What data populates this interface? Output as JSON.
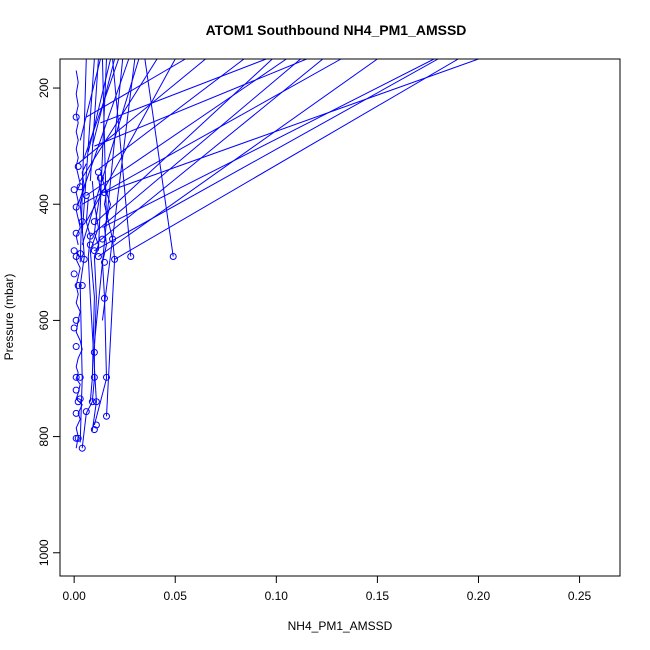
{
  "chart_data": {
    "type": "line",
    "title": "ATOM1 Southbound NH4_PM1_AMSSD",
    "xlabel": "NH4_PM1_AMSSD",
    "ylabel": "Pressure (mbar)",
    "xlim": [
      -0.007,
      0.27
    ],
    "ylim": [
      1040,
      150
    ],
    "y_reversed": true,
    "grid": false,
    "x_ticks": [
      "0.00",
      "0.05",
      "0.10",
      "0.15",
      "0.20",
      "0.25"
    ],
    "y_ticks": [
      "200",
      "400",
      "600",
      "800",
      "1000"
    ],
    "colors": {
      "series": "#0000ff",
      "axis": "#000000"
    },
    "series": [
      {
        "x": [
          0.001,
          0.002,
          0.001,
          0.003,
          0.002,
          0.004,
          0.001,
          0.002,
          0.003,
          0.001,
          0.002,
          0.001,
          0.002,
          0.004,
          0.003,
          0.001,
          0.002,
          0.003,
          0.001,
          0.002,
          0.001,
          0.002,
          0.003,
          0.001,
          0.002
        ],
        "y": [
          820,
          800,
          785,
          770,
          760,
          745,
          735,
          725,
          710,
          700,
          690,
          680,
          665,
          650,
          635,
          620,
          600,
          585,
          570,
          555,
          540,
          525,
          510,
          495,
          480
        ]
      },
      {
        "x": [
          0.002,
          0.001,
          0.003,
          0.002,
          0.001,
          0.002,
          0.001,
          0.003,
          0.002,
          0.001,
          0.002,
          0.001,
          0.002,
          0.001,
          0.002,
          0.001,
          0.002,
          0.001,
          0.002,
          0.001
        ],
        "y": [
          470,
          455,
          440,
          425,
          410,
          395,
          380,
          365,
          350,
          335,
          320,
          305,
          290,
          275,
          260,
          245,
          230,
          210,
          190,
          170
        ]
      },
      {
        "x": [
          0.004,
          0.006,
          0.009,
          0.01,
          0.01,
          0.011,
          0.01,
          0.012,
          0.01,
          0.011,
          0.013,
          0.012
        ],
        "y": [
          820,
          760,
          740,
          700,
          650,
          560,
          490,
          470,
          450,
          420,
          380,
          350
        ]
      },
      {
        "x": [
          0.01,
          0.016,
          0.015,
          0.014,
          0.016,
          0.015,
          0.018,
          0.015
        ],
        "y": [
          780,
          700,
          560,
          500,
          470,
          440,
          400,
          370
        ]
      },
      {
        "x": [
          0.016,
          0.02,
          0.019,
          0.017,
          0.015,
          0.016,
          0.013
        ],
        "y": [
          765,
          495,
          460,
          430,
          400,
          380,
          345
        ]
      },
      {
        "x": [
          0.003,
          0.004,
          0.003,
          0.005,
          0.004,
          0.003,
          0.005,
          0.004,
          0.006
        ],
        "y": [
          810,
          700,
          540,
          490,
          440,
          400,
          370,
          345,
          330
        ]
      },
      {
        "x": [
          0.009,
          0.011,
          0.008,
          0.007,
          0.008,
          0.006,
          0.007
        ],
        "y": [
          790,
          740,
          560,
          490,
          455,
          430,
          390
        ]
      },
      {
        "x": [
          0.008,
          0.009,
          0.01,
          0.008,
          0.012,
          0.01,
          0.009
        ],
        "y": [
          740,
          700,
          560,
          480,
          440,
          400,
          360
        ]
      }
    ],
    "rays": [
      {
        "x1": 0.049,
        "y1": 490,
        "x2": 0.035,
        "y2": 150
      },
      {
        "x1": 0.028,
        "y1": 490,
        "x2": 0.019,
        "y2": 150
      },
      {
        "x1": 0.02,
        "y1": 495,
        "x2": 0.19,
        "y2": 150
      },
      {
        "x1": 0.01,
        "y1": 480,
        "x2": 0.18,
        "y2": 150
      },
      {
        "x1": 0.012,
        "y1": 490,
        "x2": 0.15,
        "y2": 150
      },
      {
        "x1": 0.01,
        "y1": 470,
        "x2": 0.123,
        "y2": 150
      },
      {
        "x1": 0.008,
        "y1": 455,
        "x2": 0.112,
        "y2": 150
      },
      {
        "x1": 0.014,
        "y1": 440,
        "x2": 0.178,
        "y2": 150
      },
      {
        "x1": 0.011,
        "y1": 430,
        "x2": 0.098,
        "y2": 150
      },
      {
        "x1": 0.004,
        "y1": 400,
        "x2": 0.132,
        "y2": 150
      },
      {
        "x1": 0.006,
        "y1": 385,
        "x2": 0.105,
        "y2": 150
      },
      {
        "x1": 0.015,
        "y1": 380,
        "x2": 0.2,
        "y2": 150
      },
      {
        "x1": 0.012,
        "y1": 340,
        "x2": 0.084,
        "y2": 150
      },
      {
        "x1": 0.003,
        "y1": 360,
        "x2": 0.041,
        "y2": 150
      },
      {
        "x1": 0.006,
        "y1": 430,
        "x2": 0.05,
        "y2": 150
      },
      {
        "x1": 0.004,
        "y1": 470,
        "x2": 0.032,
        "y2": 150
      },
      {
        "x1": 0.002,
        "y1": 400,
        "x2": 0.027,
        "y2": 150
      },
      {
        "x1": 0.005,
        "y1": 320,
        "x2": 0.022,
        "y2": 150
      },
      {
        "x1": 0.007,
        "y1": 310,
        "x2": 0.018,
        "y2": 150
      },
      {
        "x1": 0.009,
        "y1": 300,
        "x2": 0.02,
        "y2": 150
      },
      {
        "x1": 0.003,
        "y1": 290,
        "x2": 0.013,
        "y2": 150
      },
      {
        "x1": 0.012,
        "y1": 480,
        "x2": 0.016,
        "y2": 150
      },
      {
        "x1": 0.016,
        "y1": 430,
        "x2": 0.014,
        "y2": 150
      },
      {
        "x1": 0.004,
        "y1": 450,
        "x2": 0.01,
        "y2": 150
      },
      {
        "x1": 0.01,
        "y1": 300,
        "x2": 0.115,
        "y2": 150
      },
      {
        "x1": 0.013,
        "y1": 260,
        "x2": 0.095,
        "y2": 150
      },
      {
        "x1": 0.002,
        "y1": 330,
        "x2": 0.065,
        "y2": 150
      },
      {
        "x1": 0.006,
        "y1": 250,
        "x2": 0.055,
        "y2": 150
      },
      {
        "x1": 0.008,
        "y1": 360,
        "x2": 0.012,
        "y2": 150
      },
      {
        "x1": 0.01,
        "y1": 640,
        "x2": 0.024,
        "y2": 150
      },
      {
        "x1": 0.014,
        "y1": 600,
        "x2": 0.03,
        "y2": 150
      },
      {
        "x1": 0.003,
        "y1": 500,
        "x2": 0.006,
        "y2": 150
      }
    ],
    "points": [
      {
        "x": 0.049,
        "y": 490
      },
      {
        "x": 0.028,
        "y": 490
      },
      {
        "x": 0.02,
        "y": 495
      },
      {
        "x": 0.004,
        "y": 820
      },
      {
        "x": 0.001,
        "y": 803
      },
      {
        "x": 0.002,
        "y": 803
      },
      {
        "x": 0.01,
        "y": 788
      },
      {
        "x": 0.011,
        "y": 780
      },
      {
        "x": 0.016,
        "y": 765
      },
      {
        "x": 0.006,
        "y": 757
      },
      {
        "x": 0.001,
        "y": 760
      },
      {
        "x": 0.002,
        "y": 740
      },
      {
        "x": 0.009,
        "y": 740
      },
      {
        "x": 0.011,
        "y": 740
      },
      {
        "x": 0.003,
        "y": 735
      },
      {
        "x": 0.001,
        "y": 720
      },
      {
        "x": 0.001,
        "y": 698
      },
      {
        "x": 0.003,
        "y": 698
      },
      {
        "x": 0.01,
        "y": 698
      },
      {
        "x": 0.016,
        "y": 698
      },
      {
        "x": 0.01,
        "y": 655
      },
      {
        "x": 0.001,
        "y": 645
      },
      {
        "x": 0.0,
        "y": 613
      },
      {
        "x": 0.001,
        "y": 600
      },
      {
        "x": 0.015,
        "y": 562
      },
      {
        "x": 0.002,
        "y": 540
      },
      {
        "x": 0.004,
        "y": 540
      },
      {
        "x": 0.0,
        "y": 520
      },
      {
        "x": 0.015,
        "y": 500
      },
      {
        "x": 0.005,
        "y": 495
      },
      {
        "x": 0.012,
        "y": 490
      },
      {
        "x": 0.001,
        "y": 490
      },
      {
        "x": 0.003,
        "y": 485
      },
      {
        "x": 0.01,
        "y": 480
      },
      {
        "x": 0.0,
        "y": 480
      },
      {
        "x": 0.008,
        "y": 470
      },
      {
        "x": 0.014,
        "y": 460
      },
      {
        "x": 0.019,
        "y": 460
      },
      {
        "x": 0.008,
        "y": 455
      },
      {
        "x": 0.001,
        "y": 450
      },
      {
        "x": 0.01,
        "y": 430
      },
      {
        "x": 0.004,
        "y": 430
      },
      {
        "x": 0.001,
        "y": 405
      },
      {
        "x": 0.015,
        "y": 380
      },
      {
        "x": 0.006,
        "y": 385
      },
      {
        "x": 0.0,
        "y": 375
      },
      {
        "x": 0.003,
        "y": 370
      },
      {
        "x": 0.013,
        "y": 355
      },
      {
        "x": 0.012,
        "y": 345
      },
      {
        "x": 0.002,
        "y": 335
      },
      {
        "x": 0.001,
        "y": 250
      }
    ]
  }
}
